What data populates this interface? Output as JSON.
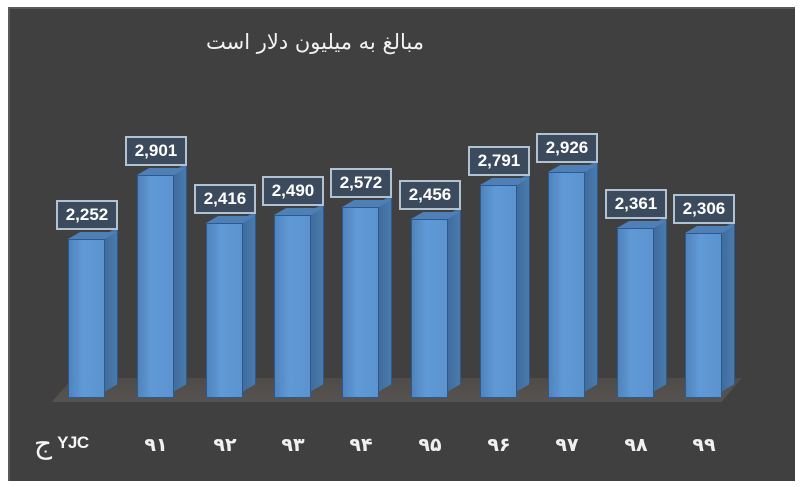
{
  "chart_data": {
    "type": "bar",
    "title": "مبالغ به میلیون دلار است",
    "xlabel": "",
    "ylabel": "",
    "categories": [
      "",
      "۹۱",
      "۹۲",
      "۹۳",
      "۹۴",
      "۹۵",
      "۹۶",
      "۹۷",
      "۹۸",
      "۹۹"
    ],
    "values": [
      2252,
      2901,
      2416,
      2490,
      2572,
      2456,
      2791,
      2926,
      2361,
      2306
    ],
    "value_labels": [
      "2,252",
      "2,901",
      "2,416",
      "2,490",
      "2,572",
      "2,456",
      "2,791",
      "2,926",
      "2,361",
      "2,306"
    ],
    "grid": false,
    "legend": null,
    "style": "3d-column",
    "bar_color": "#5b93cf",
    "background_color": "#404040"
  },
  "chart": {
    "title": "مبالغ به میلیون دلار است",
    "x_labels": [
      "۹۱",
      "۹۲",
      "۹۳",
      "۹۴",
      "۹۵",
      "۹۶",
      "۹۷",
      "۹۸",
      "۹۹"
    ],
    "value_labels": [
      "2,252",
      "2,901",
      "2,416",
      "2,490",
      "2,572",
      "2,456",
      "2,791",
      "2,926",
      "2,361",
      "2,306"
    ]
  },
  "logo": {
    "glyph": "ج",
    "text": "YJC"
  }
}
